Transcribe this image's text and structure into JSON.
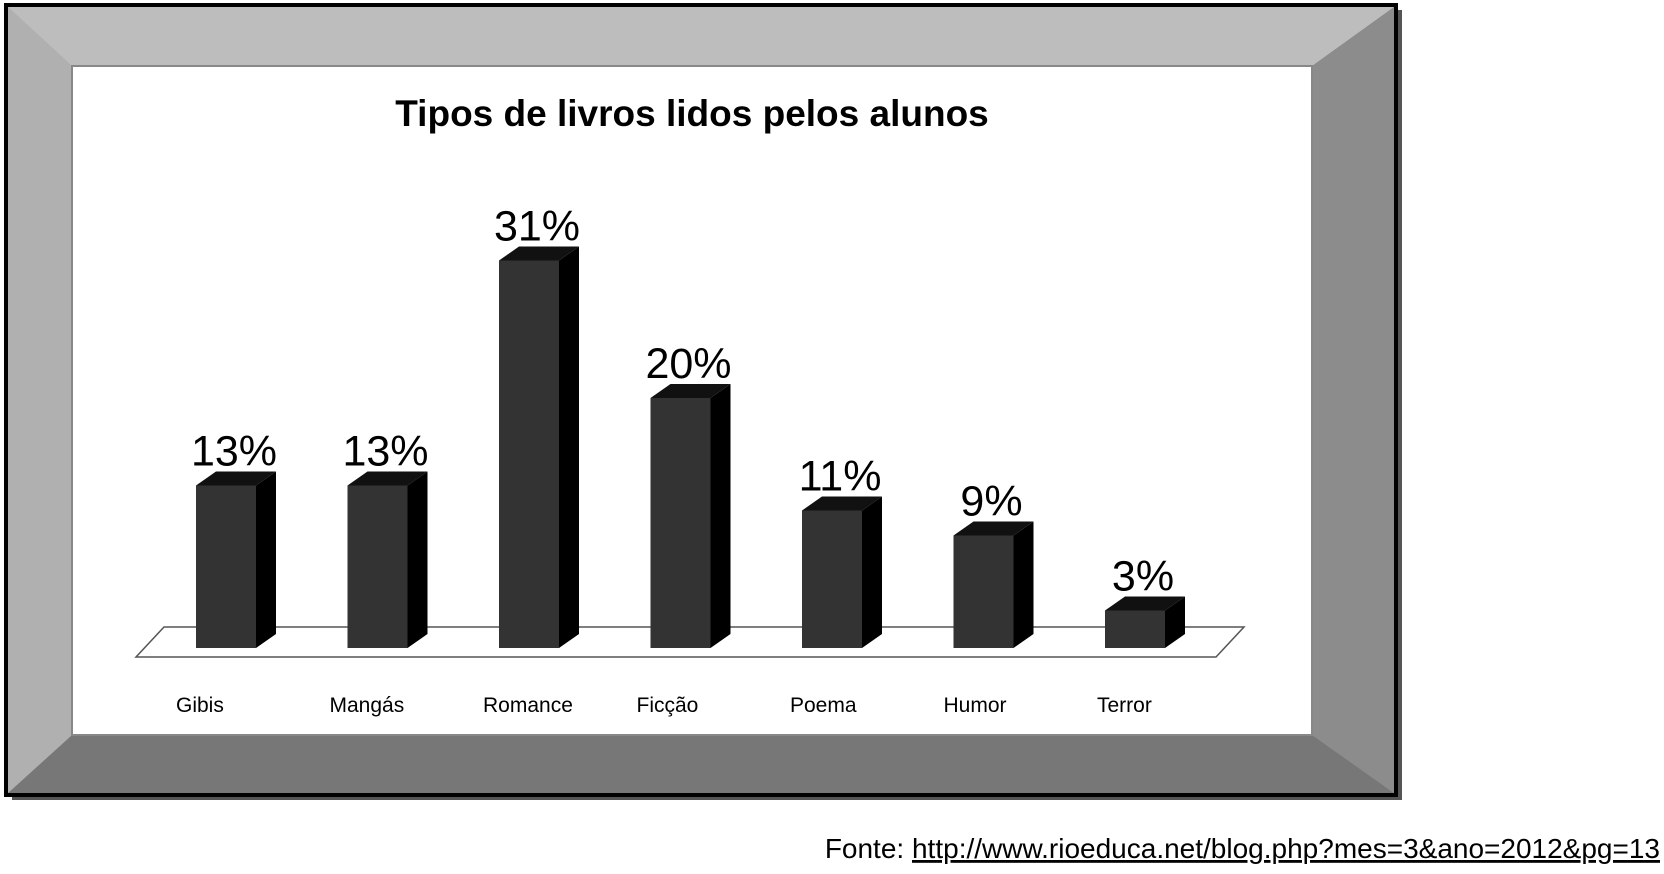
{
  "chart_data": {
    "type": "bar3d",
    "title": "Tipos de livros lidos pelos alunos",
    "categories": [
      "Gibis",
      "Mangás",
      "Romance",
      "Ficção",
      "Poema",
      "Humor",
      "Terror"
    ],
    "values": [
      13,
      13,
      31,
      20,
      11,
      9,
      3
    ],
    "value_labels": [
      "13%",
      "13%",
      "31%",
      "20%",
      "11%",
      "9%",
      "3%"
    ],
    "color": "#333333",
    "source_label": "Fonte:",
    "source_url": "http://www.rioeduca.net/blog.php?mes=3&ano=2012&pg=13"
  }
}
